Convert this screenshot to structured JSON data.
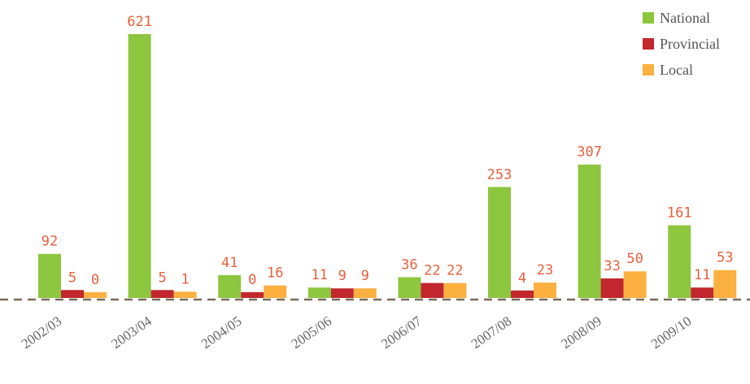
{
  "chart_data": {
    "type": "bar",
    "categories": [
      "2002/03",
      "2003/04",
      "2004/05",
      "2005/06",
      "2006/07",
      "2007/08",
      "2008/09",
      "2009/10"
    ],
    "series": [
      {
        "name": "National",
        "color": "#8dc63f",
        "values": [
          92,
          621,
          41,
          11,
          36,
          253,
          307,
          161
        ]
      },
      {
        "name": "Provincial",
        "color": "#c1272d",
        "values": [
          5,
          5,
          0,
          9,
          22,
          4,
          33,
          11
        ]
      },
      {
        "name": "Local",
        "color": "#fbb040",
        "values": [
          0,
          1,
          16,
          9,
          22,
          23,
          50,
          53
        ]
      }
    ],
    "ylim": [
      -14,
      621
    ],
    "legend": "top-right"
  }
}
